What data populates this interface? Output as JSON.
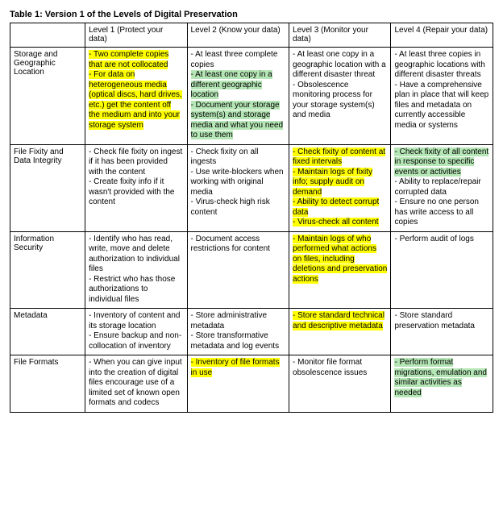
{
  "title": "Table 1: Version 1 of the Levels of Digital Preservation",
  "columns": [
    "",
    "Level 1 (Protect your data)",
    "Level 2 (Know your data)",
    "Level 3 (Monitor your data)",
    "Level 4 (Repair your data)"
  ],
  "rows": [
    {
      "header": "Storage and Geographic Location",
      "cells": [
        [
          {
            "text": "- Two complete copies that are not collocated",
            "hl": "y"
          },
          {
            "text": "- For data on heterogeneous media (optical discs, hard drives, etc.) get the content off the medium and into your storage system",
            "hl": "y"
          }
        ],
        [
          {
            "text": "- At least three complete copies",
            "hl": null
          },
          {
            "text": "- At least one copy in a different geographic location",
            "hl": "g"
          },
          {
            "text": "- Document your storage system(s) and storage media and what you need to use them",
            "hl": "g"
          }
        ],
        [
          {
            "text": "- At least one copy in a geographic location with a different disaster threat",
            "hl": null
          },
          {
            "text": "- Obsolescence monitoring process for your storage system(s) and media",
            "hl": null
          }
        ],
        [
          {
            "text": "- At least three copies in geographic locations with different disaster threats",
            "hl": null
          },
          {
            "text": "- Have a comprehensive plan in place that will keep files and metadata on currently accessible media or systems",
            "hl": null
          }
        ]
      ]
    },
    {
      "header": "File Fixity and Data Integrity",
      "cells": [
        [
          {
            "text": "- Check file fixity on ingest if it has been provided with the content",
            "hl": null
          },
          {
            "text": "- Create fixity info if it wasn't provided with the content",
            "hl": null
          }
        ],
        [
          {
            "text": "- Check fixity on all ingests",
            "hl": null
          },
          {
            "text": "- Use write-blockers when working with original media",
            "hl": null
          },
          {
            "text": "- Virus-check high risk content",
            "hl": null
          }
        ],
        [
          {
            "text": "- Check fixity of content at fixed intervals",
            "hl": "y"
          },
          {
            "text": "- Maintain logs of fixity info; supply audit on demand",
            "hl": "y"
          },
          {
            "text": "- Ability to detect corrupt data",
            "hl": "y"
          },
          {
            "text": "- Virus-check all content",
            "hl": "y"
          }
        ],
        [
          {
            "text": "- Check fixity of all content in response to specific events or activities",
            "hl": "g"
          },
          {
            "text": "- Ability to replace/repair corrupted data",
            "hl": null
          },
          {
            "text": "- Ensure no one person has write access to all copies",
            "hl": null
          }
        ]
      ]
    },
    {
      "header": "Information Security",
      "cells": [
        [
          {
            "text": "- Identify who has read, write, move and delete authorization to individual files",
            "hl": null
          },
          {
            "text": "- Restrict who has those authorizations to individual files",
            "hl": null
          }
        ],
        [
          {
            "text": "- Document access restrictions for content",
            "hl": null
          }
        ],
        [
          {
            "text": "- Maintain logs of who performed what actions on files, including deletions and preservation actions",
            "hl": "y"
          }
        ],
        [
          {
            "text": "- Perform audit of logs",
            "hl": null
          }
        ]
      ]
    },
    {
      "header": "Metadata",
      "cells": [
        [
          {
            "text": "- Inventory of content and its storage location",
            "hl": null
          },
          {
            "text": "- Ensure backup and non-collocation of inventory",
            "hl": null
          }
        ],
        [
          {
            "text": "- Store administrative metadata",
            "hl": null
          },
          {
            "text": "- Store transformative metadata and log events",
            "hl": null
          }
        ],
        [
          {
            "text": "- Store standard technical and descriptive metadata",
            "hl": "y"
          }
        ],
        [
          {
            "text": "- Store standard preservation metadata",
            "hl": null
          }
        ]
      ]
    },
    {
      "header": "File Formats",
      "cells": [
        [
          {
            "text": "- When you can give input into the creation of digital files encourage use of a limited set of known open formats and codecs",
            "hl": null
          }
        ],
        [
          {
            "text": "- Inventory of file formats in use",
            "hl": "y"
          }
        ],
        [
          {
            "text": "- Monitor file format obsolescence issues",
            "hl": null
          }
        ],
        [
          {
            "text": "- Perform format migrations, emulation and similar activities as needed",
            "hl": "g"
          }
        ]
      ]
    }
  ],
  "colors": {
    "highlight_yellow": "#ffff00",
    "highlight_green": "#b5e6b5",
    "border": "#000000",
    "background": "#ffffff",
    "text": "#000000"
  },
  "font": {
    "family": "Arial",
    "size_pt": 10,
    "title_size_pt": 11
  }
}
